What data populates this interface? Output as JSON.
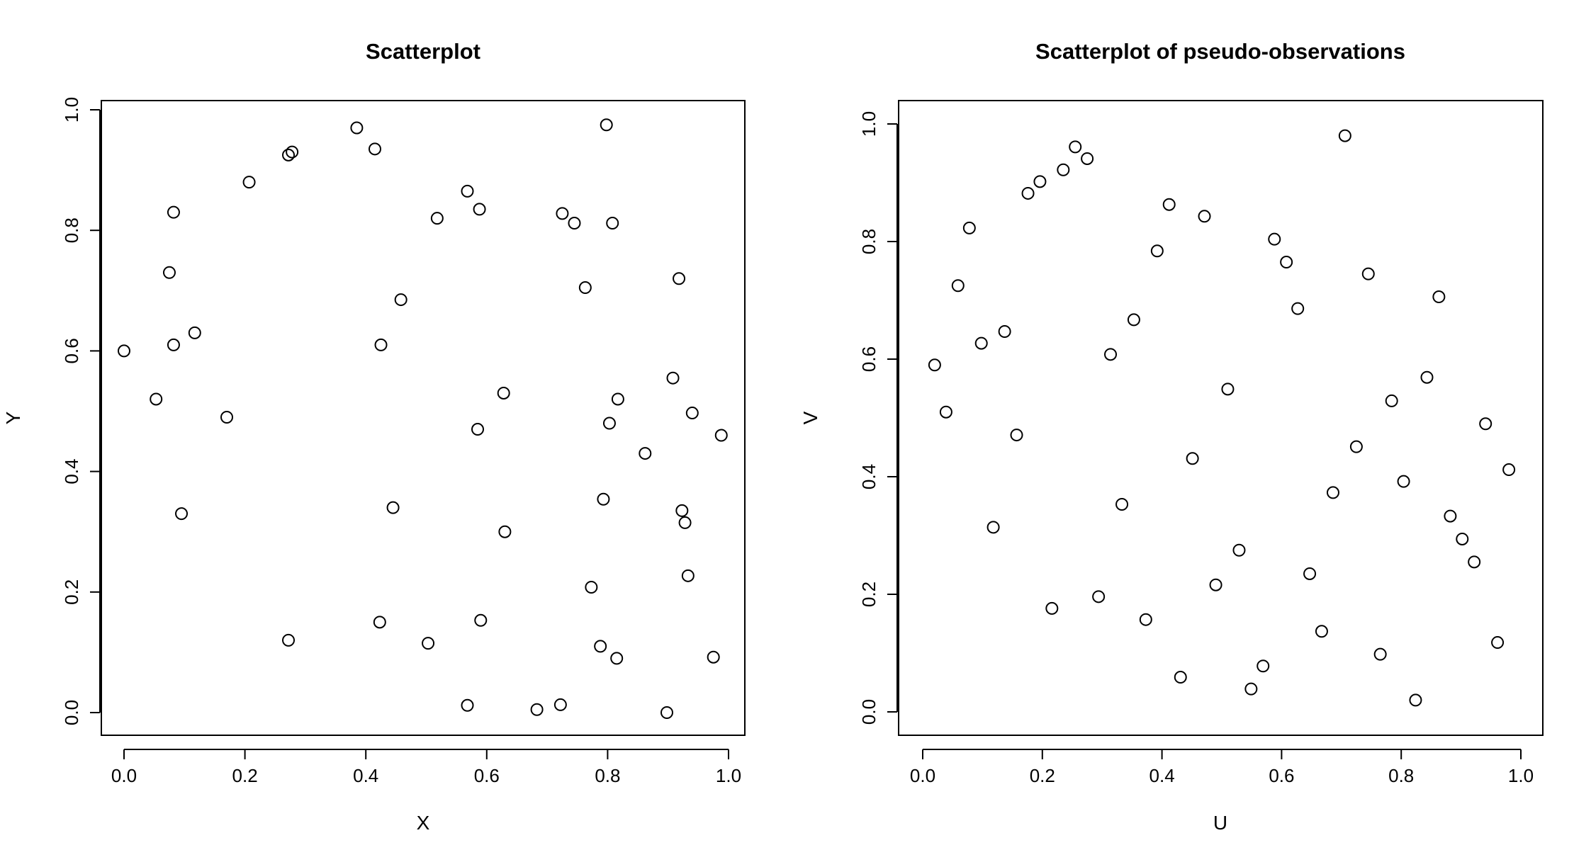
{
  "chart_data": [
    {
      "type": "scatter",
      "title": "Scatterplot",
      "xlabel": "X",
      "ylabel": "Y",
      "xlim": [
        0,
        1
      ],
      "ylim": [
        0,
        1
      ],
      "xticks": [
        "0.0",
        "0.2",
        "0.4",
        "0.6",
        "0.8",
        "1.0"
      ],
      "yticks": [
        "0.0",
        "0.2",
        "0.4",
        "0.6",
        "0.8",
        "1.0"
      ],
      "grid": false,
      "points": [
        [
          0.0,
          0.6
        ],
        [
          0.053,
          0.52
        ],
        [
          0.075,
          0.73
        ],
        [
          0.082,
          0.83
        ],
        [
          0.082,
          0.61
        ],
        [
          0.095,
          0.33
        ],
        [
          0.117,
          0.63
        ],
        [
          0.17,
          0.49
        ],
        [
          0.207,
          0.88
        ],
        [
          0.272,
          0.925
        ],
        [
          0.278,
          0.93
        ],
        [
          0.272,
          0.12
        ],
        [
          0.385,
          0.97
        ],
        [
          0.415,
          0.935
        ],
        [
          0.425,
          0.61
        ],
        [
          0.423,
          0.15
        ],
        [
          0.445,
          0.34
        ],
        [
          0.458,
          0.685
        ],
        [
          0.503,
          0.115
        ],
        [
          0.518,
          0.82
        ],
        [
          0.568,
          0.865
        ],
        [
          0.568,
          0.012
        ],
        [
          0.585,
          0.47
        ],
        [
          0.588,
          0.835
        ],
        [
          0.59,
          0.153
        ],
        [
          0.628,
          0.53
        ],
        [
          0.63,
          0.3
        ],
        [
          0.683,
          0.005
        ],
        [
          0.722,
          0.013
        ],
        [
          0.725,
          0.828
        ],
        [
          0.745,
          0.812
        ],
        [
          0.763,
          0.705
        ],
        [
          0.773,
          0.208
        ],
        [
          0.788,
          0.11
        ],
        [
          0.793,
          0.354
        ],
        [
          0.798,
          0.975
        ],
        [
          0.803,
          0.48
        ],
        [
          0.808,
          0.812
        ],
        [
          0.815,
          0.09
        ],
        [
          0.817,
          0.52
        ],
        [
          0.862,
          0.43
        ],
        [
          0.898,
          0.0
        ],
        [
          0.908,
          0.555
        ],
        [
          0.918,
          0.72
        ],
        [
          0.923,
          0.335
        ],
        [
          0.928,
          0.315
        ],
        [
          0.933,
          0.227
        ],
        [
          0.94,
          0.497
        ],
        [
          0.975,
          0.092
        ],
        [
          0.988,
          0.46
        ]
      ]
    },
    {
      "type": "scatter",
      "title": "Scatterplot of pseudo-observations",
      "xlabel": "U",
      "ylabel": "V",
      "xlim": [
        0,
        1
      ],
      "ylim": [
        0,
        1
      ],
      "xticks": [
        "0.0",
        "0.2",
        "0.4",
        "0.6",
        "0.8",
        "1.0"
      ],
      "yticks": [
        "0.0",
        "0.2",
        "0.4",
        "0.6",
        "0.8",
        "1.0"
      ],
      "grid": false,
      "points": [
        [
          0.02,
          0.59
        ],
        [
          0.039,
          0.51
        ],
        [
          0.059,
          0.725
        ],
        [
          0.078,
          0.823
        ],
        [
          0.098,
          0.627
        ],
        [
          0.118,
          0.314
        ],
        [
          0.137,
          0.647
        ],
        [
          0.157,
          0.471
        ],
        [
          0.176,
          0.882
        ],
        [
          0.196,
          0.902
        ],
        [
          0.216,
          0.176
        ],
        [
          0.235,
          0.922
        ],
        [
          0.255,
          0.961
        ],
        [
          0.275,
          0.941
        ],
        [
          0.294,
          0.196
        ],
        [
          0.314,
          0.608
        ],
        [
          0.333,
          0.353
        ],
        [
          0.353,
          0.667
        ],
        [
          0.373,
          0.157
        ],
        [
          0.392,
          0.784
        ],
        [
          0.412,
          0.863
        ],
        [
          0.431,
          0.059
        ],
        [
          0.451,
          0.431
        ],
        [
          0.471,
          0.843
        ],
        [
          0.49,
          0.216
        ],
        [
          0.51,
          0.549
        ],
        [
          0.529,
          0.275
        ],
        [
          0.549,
          0.039
        ],
        [
          0.569,
          0.078
        ],
        [
          0.588,
          0.804
        ],
        [
          0.608,
          0.765
        ],
        [
          0.627,
          0.686
        ],
        [
          0.647,
          0.235
        ],
        [
          0.667,
          0.137
        ],
        [
          0.686,
          0.373
        ],
        [
          0.706,
          0.98
        ],
        [
          0.725,
          0.451
        ],
        [
          0.745,
          0.745
        ],
        [
          0.765,
          0.098
        ],
        [
          0.784,
          0.529
        ],
        [
          0.804,
          0.392
        ],
        [
          0.824,
          0.02
        ],
        [
          0.843,
          0.569
        ],
        [
          0.863,
          0.706
        ],
        [
          0.882,
          0.333
        ],
        [
          0.902,
          0.294
        ],
        [
          0.922,
          0.255
        ],
        [
          0.941,
          0.49
        ],
        [
          0.961,
          0.118
        ],
        [
          0.98,
          0.412
        ]
      ]
    }
  ]
}
